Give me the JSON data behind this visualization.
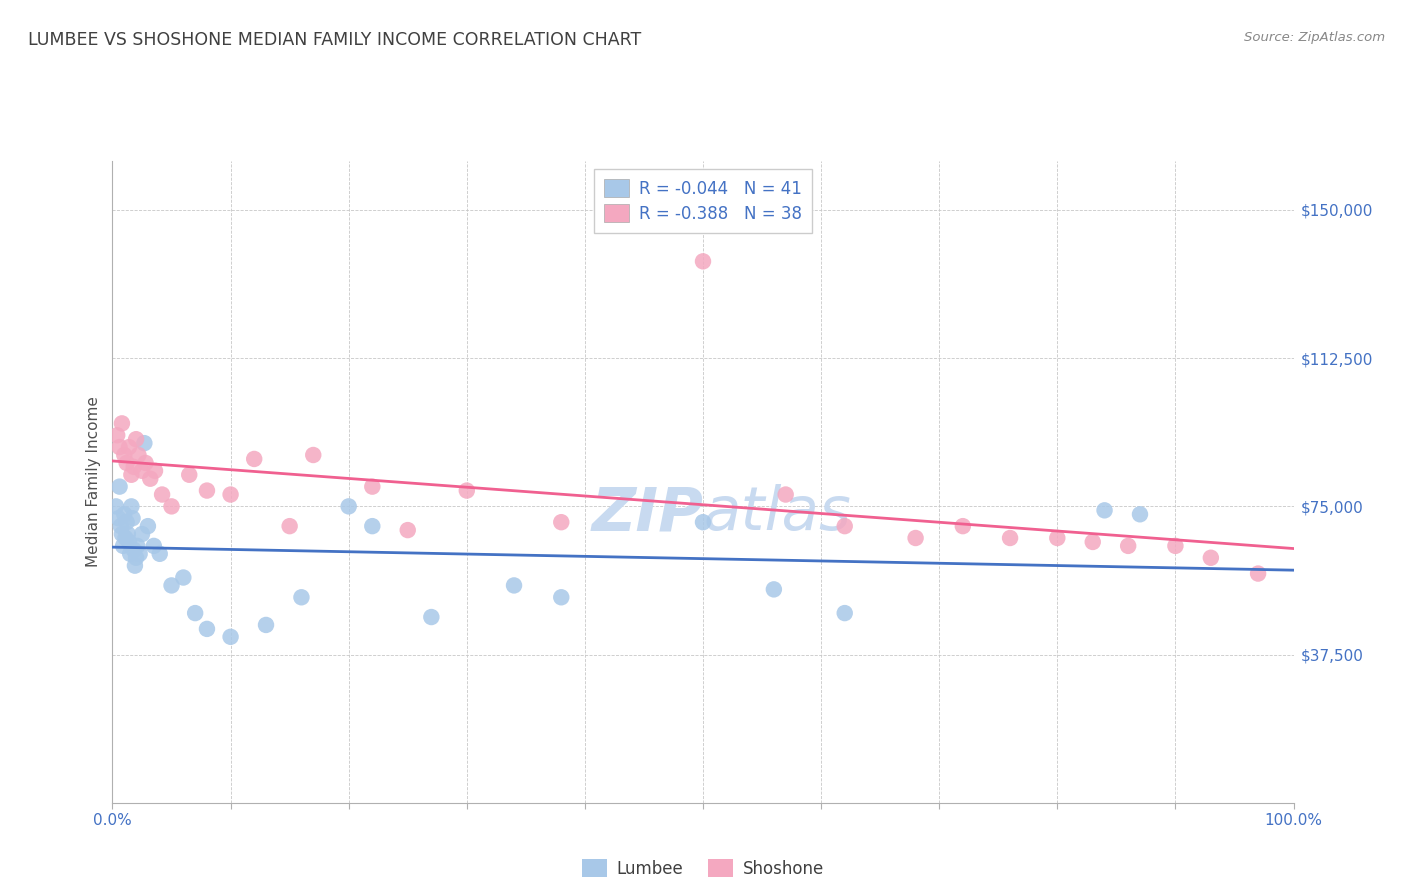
{
  "title": "LUMBEE VS SHOSHONE MEDIAN FAMILY INCOME CORRELATION CHART",
  "source": "Source: ZipAtlas.com",
  "ylabel": "Median Family Income",
  "yticks": [
    0,
    37500,
    75000,
    112500,
    150000
  ],
  "ytick_labels": [
    "",
    "$37,500",
    "$75,000",
    "$112,500",
    "$150,000"
  ],
  "lumbee_R": -0.044,
  "lumbee_N": 41,
  "shoshone_R": -0.388,
  "shoshone_N": 38,
  "lumbee_color": "#a8c8e8",
  "shoshone_color": "#f4a8c0",
  "lumbee_line_color": "#4472c4",
  "shoshone_line_color": "#f06090",
  "title_color": "#404040",
  "source_color": "#888888",
  "axis_label_color": "#4472c4",
  "watermark_color": "#c8daf0",
  "lumbee_points_x": [
    0.3,
    0.5,
    0.6,
    0.7,
    0.8,
    0.9,
    1.0,
    1.1,
    1.2,
    1.3,
    1.4,
    1.5,
    1.6,
    1.7,
    1.8,
    1.9,
    2.0,
    2.1,
    2.3,
    2.5,
    2.7,
    3.0,
    3.5,
    4.0,
    5.0,
    6.0,
    7.0,
    8.0,
    10.0,
    13.0,
    16.0,
    20.0,
    22.0,
    27.0,
    34.0,
    38.0,
    50.0,
    56.0,
    62.0,
    84.0,
    87.0
  ],
  "lumbee_points_y": [
    75000,
    72000,
    80000,
    70000,
    68000,
    65000,
    73000,
    67000,
    71000,
    68000,
    66000,
    63000,
    75000,
    72000,
    64000,
    60000,
    62000,
    65000,
    63000,
    68000,
    91000,
    70000,
    65000,
    63000,
    55000,
    57000,
    48000,
    44000,
    42000,
    45000,
    52000,
    75000,
    70000,
    47000,
    55000,
    52000,
    71000,
    54000,
    48000,
    74000,
    73000
  ],
  "shoshone_points_x": [
    0.4,
    0.6,
    0.8,
    1.0,
    1.2,
    1.4,
    1.6,
    1.8,
    2.0,
    2.2,
    2.5,
    2.8,
    3.2,
    3.6,
    4.2,
    5.0,
    6.5,
    8.0,
    10.0,
    12.0,
    15.0,
    17.0,
    22.0,
    25.0,
    30.0,
    38.0,
    50.0,
    57.0,
    62.0,
    68.0,
    72.0,
    76.0,
    80.0,
    83.0,
    86.0,
    90.0,
    93.0,
    97.0
  ],
  "shoshone_points_y": [
    93000,
    90000,
    96000,
    88000,
    86000,
    90000,
    83000,
    85000,
    92000,
    88000,
    84000,
    86000,
    82000,
    84000,
    78000,
    75000,
    83000,
    79000,
    78000,
    87000,
    70000,
    88000,
    80000,
    69000,
    79000,
    71000,
    137000,
    78000,
    70000,
    67000,
    70000,
    67000,
    67000,
    66000,
    65000,
    65000,
    62000,
    58000
  ],
  "xmin": 0,
  "xmax": 100,
  "ymin": 0,
  "ymax": 162500
}
